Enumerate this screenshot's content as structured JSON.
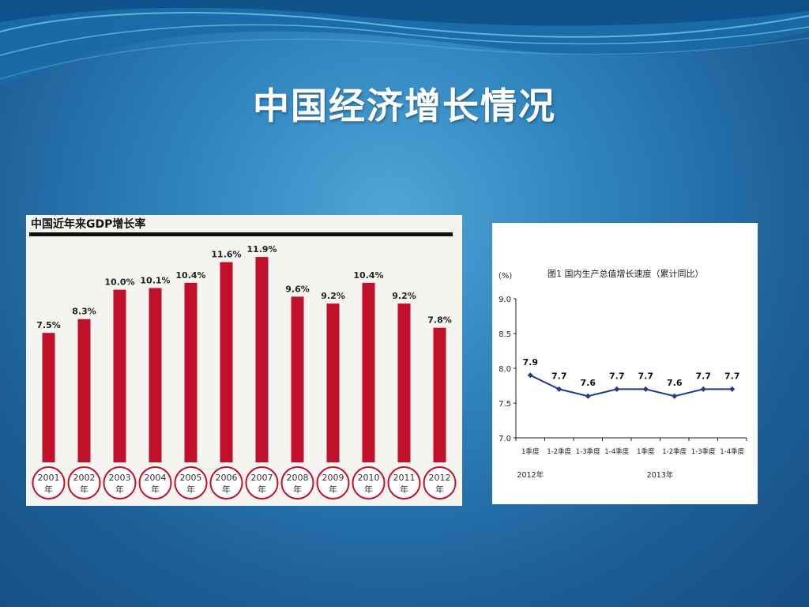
{
  "slide": {
    "title": "中国经济增长情况"
  },
  "colors": {
    "bar": "#c0102a",
    "line": "#1f3a93",
    "heading_rule": "#111111"
  },
  "chart_data": [
    {
      "type": "bar",
      "title": "中国近年来GDP增长率",
      "categories": [
        "2001",
        "2002",
        "2003",
        "2004",
        "2005",
        "2006",
        "2007",
        "2008",
        "2009",
        "2010",
        "2011",
        "2012"
      ],
      "category_suffix": "年",
      "values": [
        7.5,
        8.3,
        10.0,
        10.1,
        10.4,
        11.6,
        11.9,
        9.6,
        9.2,
        10.4,
        9.2,
        7.8
      ],
      "value_labels": [
        "7.5%",
        "8.3%",
        "10.0%",
        "10.1%",
        "10.4%",
        "11.6%",
        "11.9%",
        "9.6%",
        "9.2%",
        "10.4%",
        "9.2%",
        "7.8%"
      ],
      "ylim": [
        0,
        12.5
      ],
      "grid": false
    },
    {
      "type": "line",
      "title": "图1  国内生产总值增长速度（累计同比）",
      "ylabel": "(%)",
      "categories": [
        "1季度",
        "1-2季度",
        "1-3季度",
        "1-4季度",
        "1季度",
        "1-2季度",
        "1-3季度",
        "1-4季度"
      ],
      "year_labels": [
        "2012年",
        "2013年"
      ],
      "values": [
        7.9,
        7.7,
        7.6,
        7.7,
        7.7,
        7.6,
        7.7,
        7.7
      ],
      "value_labels": [
        "7.9",
        "7.7",
        "7.6",
        "7.7",
        "7.7",
        "7.6",
        "7.7",
        "7.7"
      ],
      "yticks": [
        "9.0",
        "8.5",
        "8.0",
        "7.5",
        "7.0"
      ],
      "ylim": [
        7.0,
        9.0
      ],
      "grid": false
    }
  ]
}
